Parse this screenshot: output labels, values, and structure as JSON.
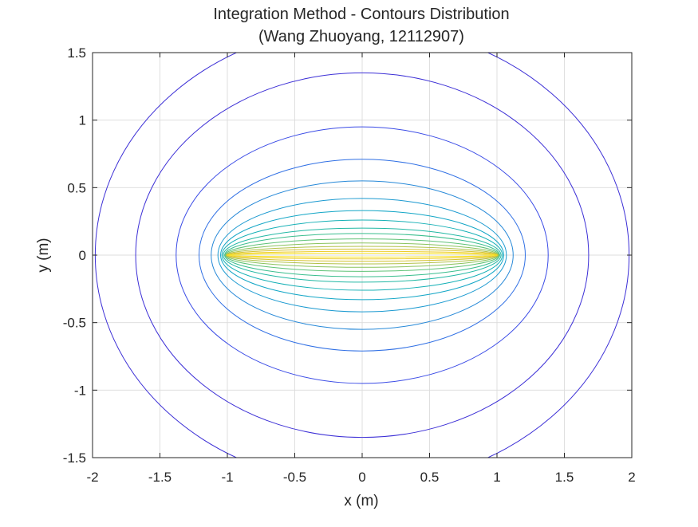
{
  "chart_data": {
    "type": "contour",
    "title": "Integration Method - Contours Distribution",
    "subtitle": "(Wang Zhuoyang, 12112907)",
    "xlabel": "x (m)",
    "ylabel": "y (m)",
    "xlim": [
      -2,
      2
    ],
    "ylim": [
      -1.5,
      1.5
    ],
    "xticks": [
      -2,
      -1.5,
      -1,
      -0.5,
      0,
      0.5,
      1,
      1.5,
      2
    ],
    "yticks": [
      -1.5,
      -1,
      -0.5,
      0,
      0.5,
      1,
      1.5
    ],
    "xtick_labels": [
      "-2",
      "-1.5",
      "-1",
      "-0.5",
      "0",
      "0.5",
      "1",
      "1.5",
      "2"
    ],
    "ytick_labels": [
      "-1.5",
      "-1",
      "-0.5",
      "0",
      "0.5",
      "1",
      "1.5"
    ],
    "grid": true,
    "colormap": "parula",
    "contours": [
      {
        "semi_major_x": 1.98,
        "semi_minor_y": 1.7,
        "color": "#3c2fd6"
      },
      {
        "semi_major_x": 1.68,
        "semi_minor_y": 1.35,
        "color": "#3c2fd6"
      },
      {
        "semi_major_x": 1.38,
        "semi_minor_y": 0.95,
        "color": "#3a4be6"
      },
      {
        "semi_major_x": 1.21,
        "semi_minor_y": 0.71,
        "color": "#2f6fe4"
      },
      {
        "semi_major_x": 1.12,
        "semi_minor_y": 0.55,
        "color": "#2789d8"
      },
      {
        "semi_major_x": 1.07,
        "semi_minor_y": 0.42,
        "color": "#1a99d0"
      },
      {
        "semi_major_x": 1.05,
        "semi_minor_y": 0.33,
        "color": "#13a6c6"
      },
      {
        "semi_major_x": 1.04,
        "semi_minor_y": 0.26,
        "color": "#15b0b6"
      },
      {
        "semi_major_x": 1.03,
        "semi_minor_y": 0.2,
        "color": "#22b8a4"
      },
      {
        "semi_major_x": 1.02,
        "semi_minor_y": 0.16,
        "color": "#3abe8e"
      },
      {
        "semi_major_x": 1.015,
        "semi_minor_y": 0.12,
        "color": "#5fc276"
      },
      {
        "semi_major_x": 1.01,
        "semi_minor_y": 0.09,
        "color": "#8ac35c"
      },
      {
        "semi_major_x": 1.008,
        "semi_minor_y": 0.065,
        "color": "#b2c146"
      },
      {
        "semi_major_x": 1.005,
        "semi_minor_y": 0.045,
        "color": "#d3c232"
      },
      {
        "semi_major_x": 1.003,
        "semi_minor_y": 0.028,
        "color": "#eccb2a"
      },
      {
        "semi_major_x": 1.001,
        "semi_minor_y": 0.014,
        "color": "#f9e21c"
      }
    ]
  }
}
